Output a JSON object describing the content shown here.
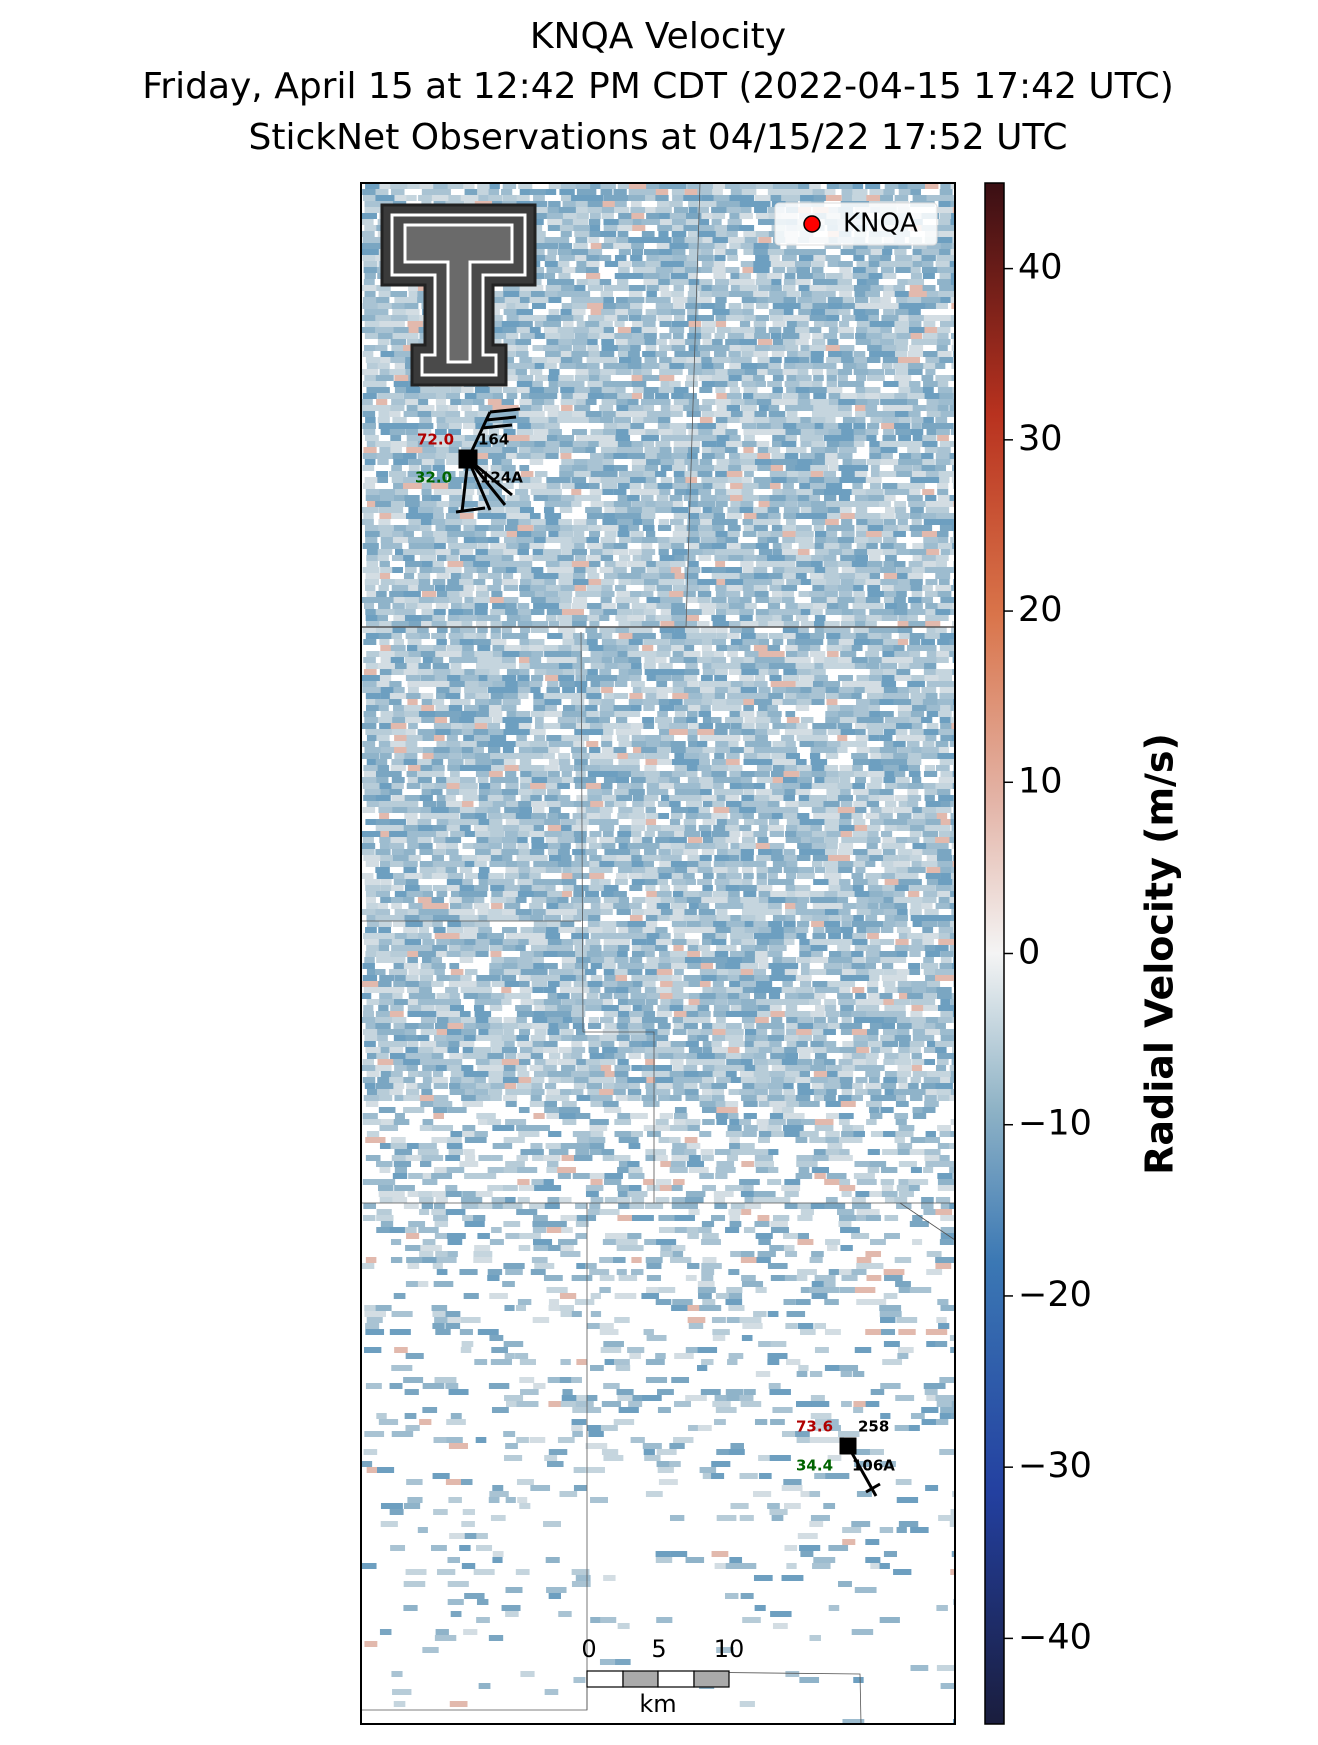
{
  "header": {
    "title": "KNQA Velocity",
    "subtitle": "Friday, April 15 at 12:42 PM CDT (2022-04-15 17:42 UTC)",
    "subtitle2": "StickNet Observations at 04/15/22 17:52 UTC"
  },
  "map": {
    "legend": "KNQA",
    "stations": [
      {
        "temperature": "72.0",
        "dewpoint": "32.0",
        "pressure": "164",
        "id": "124A"
      },
      {
        "temperature": "73.6",
        "dewpoint": "34.4",
        "pressure": "258",
        "id": "106A"
      }
    ],
    "scale_bar": {
      "labels": [
        "0",
        "5",
        "10"
      ],
      "unit": "km"
    }
  },
  "colorbar": {
    "label": "Radial Velocity (m/s)",
    "lim": [
      -45,
      45
    ],
    "ticks": [
      {
        "value": -40,
        "label": "−40"
      },
      {
        "value": -30,
        "label": "−30"
      },
      {
        "value": -20,
        "label": "−20"
      },
      {
        "value": -10,
        "label": "−10"
      },
      0,
      10,
      20,
      30,
      40
    ]
  }
}
